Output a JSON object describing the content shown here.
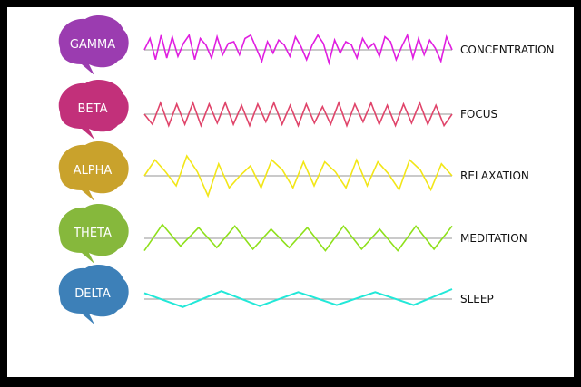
{
  "waves": [
    {
      "band": "GAMMA",
      "effect": "CONCENTRATION",
      "brain_color": "#9b3cb0",
      "wave_color": "#e01ee0",
      "pattern": [
        0.0,
        0.7,
        -0.6,
        0.9,
        -0.5,
        0.8,
        -0.4,
        0.4,
        0.9,
        -0.6,
        0.7,
        0.3,
        -0.5,
        0.8,
        -0.3,
        0.4,
        0.5,
        -0.3,
        0.7,
        0.9,
        0.1,
        -0.7,
        0.5,
        -0.2,
        0.6,
        0.3,
        -0.4,
        0.8,
        0.2,
        -0.6,
        0.3,
        0.9,
        0.4,
        -0.8,
        0.6,
        -0.2,
        0.5,
        0.3,
        -0.5,
        0.7,
        0.1,
        0.4,
        -0.4,
        0.8,
        0.5,
        -0.6,
        0.2,
        0.9,
        -0.5,
        0.7,
        -0.3,
        0.6,
        0.1,
        -0.7,
        0.8,
        0.0
      ]
    },
    {
      "band": "BETA",
      "effect": "FOCUS",
      "brain_color": "#c2307a",
      "wave_color": "#e0446a",
      "pattern": [
        0.0,
        -0.8,
        0.9,
        -0.9,
        0.8,
        -0.8,
        0.9,
        -0.9,
        0.8,
        -0.7,
        0.9,
        -0.8,
        0.7,
        -0.9,
        0.8,
        -0.6,
        0.9,
        -0.8,
        0.7,
        -0.9,
        0.8,
        -0.7,
        0.6,
        -0.8,
        0.9,
        -0.9,
        0.8,
        -0.6,
        0.9,
        -0.8,
        0.7,
        -0.9,
        0.8,
        -0.7,
        0.9,
        -0.8,
        0.7,
        -0.9,
        0.0
      ]
    },
    {
      "band": "ALPHA",
      "effect": "RELAXATION",
      "brain_color": "#c9a22c",
      "wave_color": "#f2e617",
      "pattern": [
        0.0,
        0.8,
        0.2,
        -0.5,
        1.0,
        0.2,
        -1.0,
        0.6,
        -0.6,
        0.0,
        0.5,
        -0.6,
        0.8,
        0.3,
        -0.6,
        0.7,
        -0.5,
        0.7,
        0.2,
        -0.6,
        0.8,
        -0.5,
        0.7,
        0.1,
        -0.7,
        0.8,
        0.3,
        -0.7,
        0.6,
        0.0
      ]
    },
    {
      "band": "THETA",
      "effect": "MEDITATION",
      "brain_color": "#86b83c",
      "wave_color": "#8ee01a",
      "pattern": [
        -0.8,
        0.9,
        -0.5,
        0.7,
        -0.6,
        0.8,
        -0.7,
        0.6,
        -0.6,
        0.7,
        -0.8,
        0.8,
        -0.7,
        0.6,
        -0.8,
        0.8,
        -0.7,
        0.8
      ]
    },
    {
      "band": "DELTA",
      "effect": "SLEEP",
      "brain_color": "#3d80b8",
      "wave_color": "#22e8d8",
      "pattern": [
        0.6,
        -0.8,
        0.8,
        -0.7,
        0.7,
        -0.6,
        0.7,
        -0.6,
        1.0
      ]
    }
  ]
}
